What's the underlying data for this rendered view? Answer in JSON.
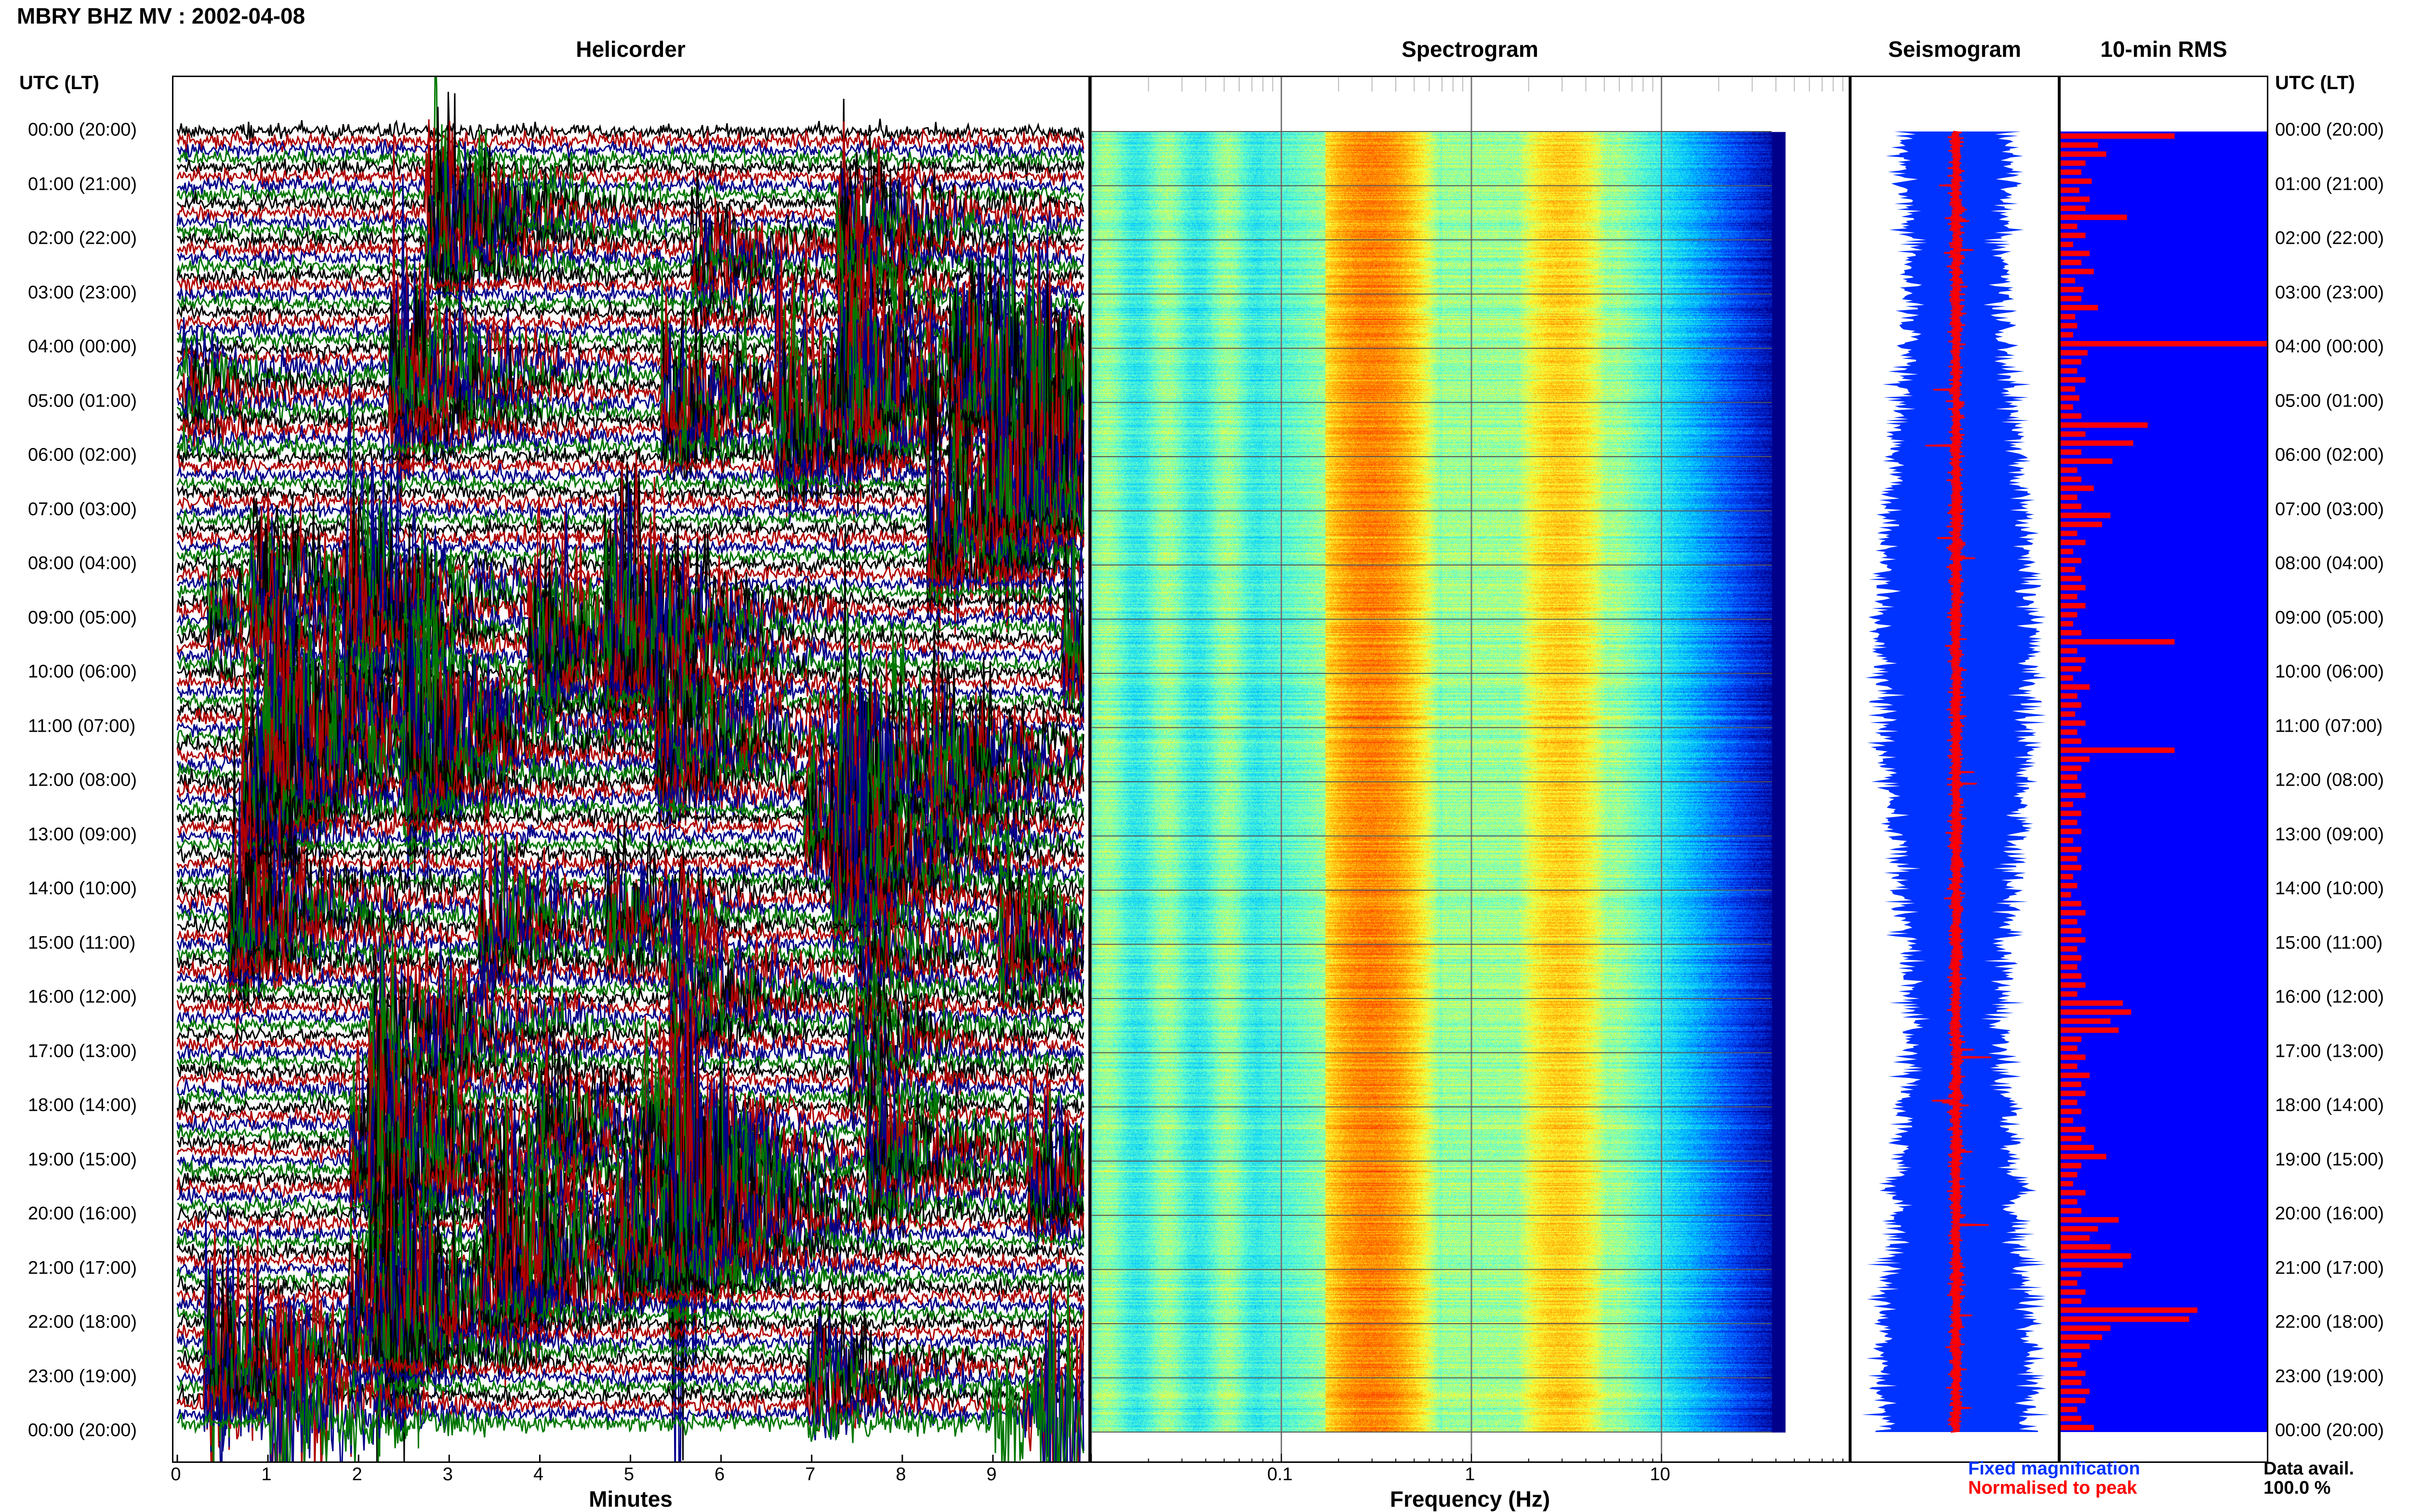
{
  "header": {
    "station_title": "MBRY BHZ MV : 2002-04-08",
    "panel_titles": {
      "helicorder": "Helicorder",
      "spectrogram": "Spectrogram",
      "seismogram": "Seismogram",
      "rms": "10-min RMS"
    },
    "left_column_header": "UTC (LT)",
    "right_column_header": "UTC (LT)"
  },
  "time_labels": [
    "00:00 (20:00)",
    "01:00 (21:00)",
    "02:00 (22:00)",
    "03:00 (23:00)",
    "04:00 (00:00)",
    "05:00 (01:00)",
    "06:00 (02:00)",
    "07:00 (03:00)",
    "08:00 (04:00)",
    "09:00 (05:00)",
    "10:00 (06:00)",
    "11:00 (07:00)",
    "12:00 (08:00)",
    "13:00 (09:00)",
    "14:00 (10:00)",
    "15:00 (11:00)",
    "16:00 (12:00)",
    "17:00 (13:00)",
    "18:00 (14:00)",
    "19:00 (15:00)",
    "20:00 (16:00)",
    "21:00 (17:00)",
    "22:00 (18:00)",
    "23:00 (19:00)",
    "00:00 (20:00)"
  ],
  "legend": {
    "fixed_magnification": "Fixed magnification",
    "normalised_to_peak": "Normalised to peak",
    "fixed_color": "#0033ff",
    "normalised_color": "#ff0000"
  },
  "data_availability": {
    "label": "Data avail.",
    "value": "100.0 %"
  },
  "chart_data": [
    {
      "type": "line",
      "title": "Helicorder",
      "xlabel": "Minutes",
      "x_ticks": [
        "0",
        "1",
        "2",
        "3",
        "4",
        "5",
        "6",
        "7",
        "8",
        "9"
      ],
      "xlim": [
        0,
        10
      ],
      "row_colors": [
        "#000000",
        "#b00000",
        "#00008b",
        "#007700"
      ],
      "rows": 144,
      "rows_per_hour": 6
    },
    {
      "type": "heatmap",
      "title": "Spectrogram",
      "xlabel": "Frequency (Hz)",
      "x_scale": "log",
      "x_ticks": [
        0.1,
        1,
        10
      ],
      "x_tick_labels": [
        "0.1",
        "1",
        "10"
      ],
      "peak_bands_hz": [
        0.2,
        0.3,
        3.0
      ],
      "colormap": [
        "#00008b",
        "#0044ff",
        "#00ccff",
        "#66ffcc",
        "#ffff33",
        "#ff9900",
        "#ff2200",
        "#990000"
      ]
    },
    {
      "type": "line",
      "title": "Seismogram",
      "series": [
        {
          "name": "Fixed magnification",
          "color": "#0033ff"
        },
        {
          "name": "Normalised to peak",
          "color": "#ff0000"
        }
      ]
    },
    {
      "type": "bar",
      "title": "10-min RMS",
      "orientation": "horizontal",
      "interval_minutes": 10,
      "background_color": "#0000ff",
      "bar_color": "#ff0000",
      "values": [
        0.55,
        0.18,
        0.22,
        0.12,
        0.1,
        0.15,
        0.09,
        0.14,
        0.12,
        0.32,
        0.08,
        0.12,
        0.06,
        0.14,
        0.1,
        0.16,
        0.07,
        0.11,
        0.1,
        0.18,
        0.07,
        0.08,
        0.06,
        1.0,
        0.13,
        0.1,
        0.08,
        0.12,
        0.07,
        0.09,
        0.06,
        0.1,
        0.42,
        0.12,
        0.35,
        0.1,
        0.25,
        0.08,
        0.1,
        0.16,
        0.08,
        0.1,
        0.24,
        0.2,
        0.08,
        0.12,
        0.06,
        0.1,
        0.07,
        0.1,
        0.12,
        0.08,
        0.12,
        0.08,
        0.06,
        0.1,
        0.55,
        0.08,
        0.12,
        0.1,
        0.06,
        0.14,
        0.08,
        0.1,
        0.07,
        0.12,
        0.08,
        0.1,
        0.55,
        0.14,
        0.1,
        0.08,
        0.1,
        0.12,
        0.06,
        0.1,
        0.08,
        0.1,
        0.06,
        0.1,
        0.08,
        0.1,
        0.06,
        0.08,
        0.05,
        0.1,
        0.12,
        0.08,
        0.1,
        0.12,
        0.08,
        0.1,
        0.08,
        0.1,
        0.12,
        0.08,
        0.3,
        0.34,
        0.24,
        0.28,
        0.1,
        0.08,
        0.12,
        0.08,
        0.14,
        0.1,
        0.12,
        0.08,
        0.1,
        0.06,
        0.12,
        0.1,
        0.16,
        0.22,
        0.1,
        0.08,
        0.06,
        0.12,
        0.08,
        0.1,
        0.28,
        0.18,
        0.14,
        0.24,
        0.34,
        0.3,
        0.1,
        0.08,
        0.12,
        0.1,
        0.66,
        0.62,
        0.24,
        0.2,
        0.14,
        0.1,
        0.08,
        0.12,
        0.1,
        0.14,
        0.12,
        0.08,
        0.1,
        0.16
      ],
      "xlim": [
        0,
        1
      ]
    }
  ]
}
